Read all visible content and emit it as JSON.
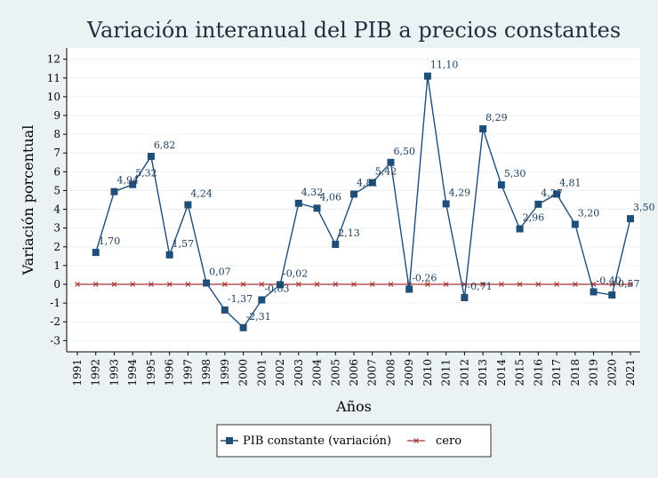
{
  "chart_data": {
    "type": "line",
    "title": "Variación interanual del PIB a precios constantes",
    "xlabel": "Años",
    "ylabel": "Variación porcentual",
    "x": [
      1991,
      1992,
      1993,
      1994,
      1995,
      1996,
      1997,
      1998,
      1999,
      2000,
      2001,
      2002,
      2003,
      2004,
      2005,
      2006,
      2007,
      2008,
      2009,
      2010,
      2011,
      2012,
      2013,
      2014,
      2015,
      2016,
      2017,
      2018,
      2019,
      2020,
      2021
    ],
    "xticks": [
      "1991",
      "1992",
      "1993",
      "1994",
      "1995",
      "1996",
      "1997",
      "1998",
      "1999",
      "2000",
      "2001",
      "2002",
      "2003",
      "2004",
      "2005",
      "2006",
      "2007",
      "2008",
      "2009",
      "2010",
      "2011",
      "2012",
      "2013",
      "2014",
      "2015",
      "2016",
      "2017",
      "2018",
      "2019",
      "2020",
      "2021"
    ],
    "ylim": [
      -3.6,
      12.6
    ],
    "yticks": [
      -3,
      -2,
      -1,
      0,
      1,
      2,
      3,
      4,
      5,
      6,
      7,
      8,
      9,
      10,
      11,
      12
    ],
    "grid": "horizontal",
    "legend_position": "bottom",
    "series": [
      {
        "name": "PIB constante (variación)",
        "color": "#1f4e79",
        "marker": "square",
        "x": [
          1992,
          1993,
          1994,
          1995,
          1996,
          1997,
          1998,
          1999,
          2000,
          2001,
          2002,
          2003,
          2004,
          2005,
          2006,
          2007,
          2008,
          2009,
          2010,
          2011,
          2012,
          2013,
          2014,
          2015,
          2016,
          2017,
          2018,
          2019,
          2020,
          2021
        ],
        "values": [
          1.7,
          4.94,
          5.32,
          6.82,
          1.57,
          4.24,
          0.07,
          -1.37,
          -2.31,
          -0.83,
          -0.02,
          4.32,
          4.06,
          2.13,
          4.81,
          5.42,
          6.5,
          -0.26,
          11.1,
          4.29,
          -0.71,
          8.29,
          5.3,
          2.96,
          4.27,
          4.81,
          3.2,
          -0.4,
          -0.57,
          3.5
        ],
        "labels": [
          "1,70",
          "4,94",
          "5,32",
          "6,82",
          "1,57",
          "4,24",
          "0,07",
          "-1,37",
          "-2,31",
          "-0,83",
          "-0,02",
          "4,32",
          "4,06",
          "2,13",
          "4,81",
          "5,42",
          "6,50",
          "-0,26",
          "11,10",
          "4,29",
          "-0,71",
          "8,29",
          "5,30",
          "2,96",
          "4,27",
          "4,81",
          "3,20",
          "-0,40",
          "-0,57",
          "3,50"
        ]
      },
      {
        "name": "cero",
        "color": "#a83232",
        "marker": "x",
        "x": [
          1991,
          1992,
          1993,
          1994,
          1995,
          1996,
          1997,
          1998,
          1999,
          2000,
          2001,
          2002,
          2003,
          2004,
          2005,
          2006,
          2007,
          2008,
          2009,
          2010,
          2011,
          2012,
          2013,
          2014,
          2015,
          2016,
          2017,
          2018,
          2019,
          2020,
          2021
        ],
        "values": [
          0,
          0,
          0,
          0,
          0,
          0,
          0,
          0,
          0,
          0,
          0,
          0,
          0,
          0,
          0,
          0,
          0,
          0,
          0,
          0,
          0,
          0,
          0,
          0,
          0,
          0,
          0,
          0,
          0,
          0,
          0
        ]
      }
    ]
  }
}
